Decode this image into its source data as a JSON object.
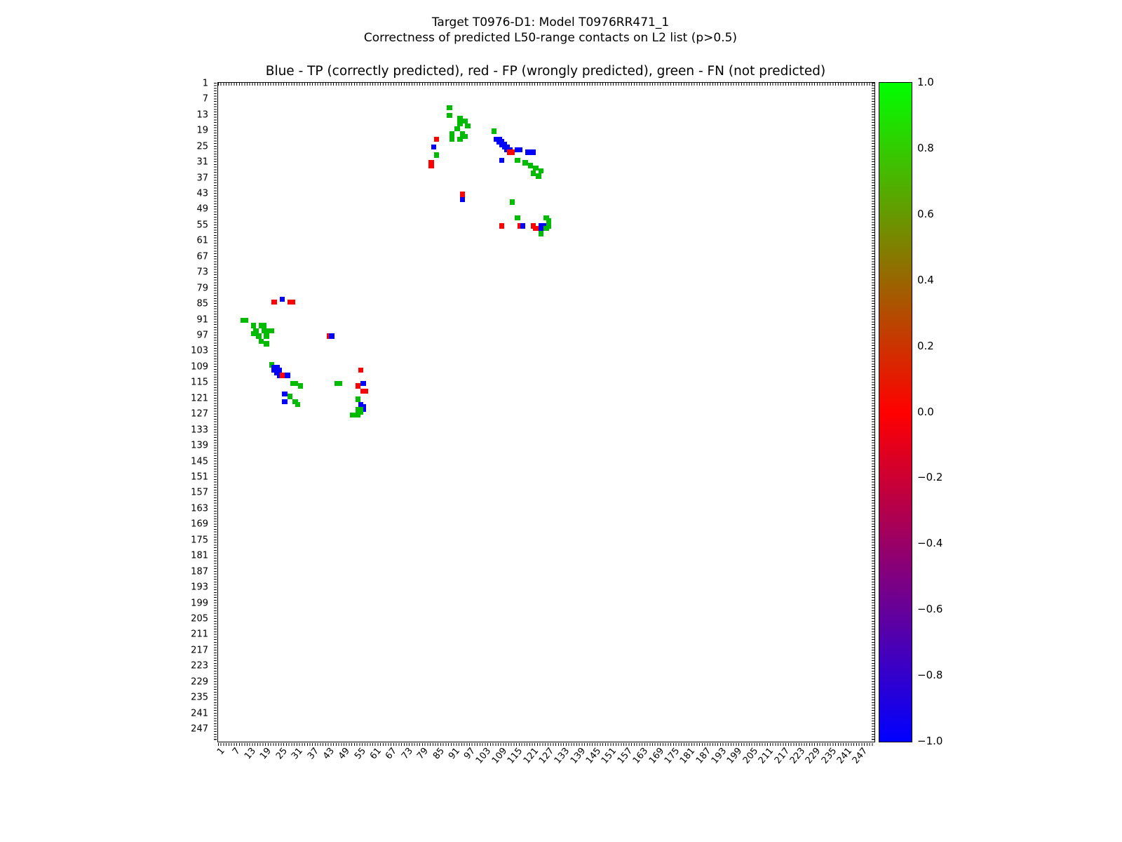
{
  "figure": {
    "suptitle1": "Target T0976-D1: Model T0976RR471_1",
    "suptitle2": "Correctness of predicted L50-range contacts on L2 list (p>0.5)"
  },
  "chart_data": {
    "type": "scatter",
    "title": "Blue - TP (correctly predicted), red - FP (wrongly predicted), green - FN (not predicted)",
    "xlabel": "",
    "ylabel": "",
    "xlim": [
      0.5,
      251.5
    ],
    "ylim": [
      0.5,
      251.5
    ],
    "y_inverted": true,
    "grid": false,
    "marker_units": 2,
    "axis_tick_labels": [
      1,
      7,
      13,
      19,
      25,
      31,
      37,
      43,
      49,
      55,
      61,
      67,
      73,
      79,
      85,
      91,
      97,
      103,
      109,
      115,
      121,
      127,
      133,
      139,
      145,
      151,
      157,
      163,
      169,
      175,
      181,
      187,
      193,
      199,
      205,
      211,
      217,
      223,
      229,
      235,
      241,
      247
    ],
    "classes": {
      "TP": {
        "label": "TP (correctly predicted)",
        "color": "#0000ff"
      },
      "FP": {
        "label": "FP (wrongly predicted)",
        "color": "#ff0000"
      },
      "FN": {
        "label": "FN (not predicted)",
        "color": "#00bb00"
      }
    },
    "points": [
      [
        89,
        10,
        "FN"
      ],
      [
        89,
        13,
        "FN"
      ],
      [
        93,
        14,
        "FN"
      ],
      [
        95,
        15,
        "FN"
      ],
      [
        93,
        16,
        "FN"
      ],
      [
        96,
        17,
        "FN"
      ],
      [
        92,
        18,
        "FN"
      ],
      [
        90,
        20,
        "FN"
      ],
      [
        94,
        20,
        "FN"
      ],
      [
        95,
        21,
        "FN"
      ],
      [
        90,
        22,
        "FN"
      ],
      [
        93,
        22,
        "FN"
      ],
      [
        84,
        22,
        "FP"
      ],
      [
        83,
        25,
        "TP"
      ],
      [
        84,
        28,
        "FN"
      ],
      [
        82,
        31,
        "FP"
      ],
      [
        82,
        32,
        "FP"
      ],
      [
        106,
        19,
        "FN"
      ],
      [
        107,
        22,
        "TP"
      ],
      [
        108,
        22,
        "TP"
      ],
      [
        108,
        23,
        "TP"
      ],
      [
        109,
        23,
        "TP"
      ],
      [
        109,
        24,
        "TP"
      ],
      [
        110,
        24,
        "TP"
      ],
      [
        110,
        25,
        "TP"
      ],
      [
        111,
        25,
        "TP"
      ],
      [
        111,
        26,
        "TP"
      ],
      [
        112,
        26,
        "TP"
      ],
      [
        112,
        27,
        "FP"
      ],
      [
        113,
        27,
        "FP"
      ],
      [
        115,
        26,
        "TP"
      ],
      [
        116,
        26,
        "TP"
      ],
      [
        119,
        27,
        "TP"
      ],
      [
        121,
        27,
        "TP"
      ],
      [
        109,
        30,
        "TP"
      ],
      [
        115,
        30,
        "FN"
      ],
      [
        118,
        31,
        "FN"
      ],
      [
        120,
        32,
        "FN"
      ],
      [
        122,
        33,
        "FN"
      ],
      [
        124,
        34,
        "FN"
      ],
      [
        121,
        35,
        "FN"
      ],
      [
        123,
        36,
        "FN"
      ],
      [
        94,
        43,
        "FP"
      ],
      [
        94,
        45,
        "TP"
      ],
      [
        113,
        46,
        "FN"
      ],
      [
        109,
        55,
        "FP"
      ],
      [
        115,
        52,
        "FN"
      ],
      [
        116,
        55,
        "FP"
      ],
      [
        117,
        55,
        "TP"
      ],
      [
        121,
        55,
        "FP"
      ],
      [
        122,
        56,
        "FP"
      ],
      [
        124,
        55,
        "TP"
      ],
      [
        125,
        55,
        "TP"
      ],
      [
        124,
        56,
        "TP"
      ],
      [
        125,
        56,
        "TP"
      ],
      [
        126,
        52,
        "FN"
      ],
      [
        127,
        53,
        "FN"
      ],
      [
        127,
        55,
        "FN"
      ],
      [
        126,
        56,
        "FN"
      ],
      [
        124,
        58,
        "FN"
      ],
      [
        22,
        84,
        "FP"
      ],
      [
        25,
        83,
        "TP"
      ],
      [
        28,
        84,
        "FP"
      ],
      [
        29,
        84,
        "FP"
      ],
      [
        10,
        91,
        "FN"
      ],
      [
        11,
        91,
        "FN"
      ],
      [
        14,
        93,
        "FN"
      ],
      [
        17,
        93,
        "FN"
      ],
      [
        18,
        93,
        "FN"
      ],
      [
        15,
        95,
        "FN"
      ],
      [
        18,
        95,
        "FN"
      ],
      [
        20,
        95,
        "FN"
      ],
      [
        21,
        95,
        "FN"
      ],
      [
        14,
        96,
        "FN"
      ],
      [
        16,
        97,
        "FN"
      ],
      [
        19,
        97,
        "FN"
      ],
      [
        17,
        99,
        "FN"
      ],
      [
        19,
        100,
        "FN"
      ],
      [
        43,
        97,
        "FP"
      ],
      [
        44,
        97,
        "TP"
      ],
      [
        21,
        108,
        "FN"
      ],
      [
        22,
        109,
        "TP"
      ],
      [
        23,
        109,
        "TP"
      ],
      [
        22,
        110,
        "TP"
      ],
      [
        23,
        110,
        "TP"
      ],
      [
        24,
        110,
        "TP"
      ],
      [
        23,
        111,
        "TP"
      ],
      [
        24,
        111,
        "TP"
      ],
      [
        24,
        112,
        "TP"
      ],
      [
        25,
        112,
        "FP"
      ],
      [
        27,
        112,
        "TP"
      ],
      [
        29,
        115,
        "FN"
      ],
      [
        30,
        115,
        "FN"
      ],
      [
        32,
        116,
        "FN"
      ],
      [
        26,
        119,
        "TP"
      ],
      [
        28,
        120,
        "FN"
      ],
      [
        26,
        122,
        "TP"
      ],
      [
        30,
        122,
        "FN"
      ],
      [
        31,
        123,
        "FN"
      ],
      [
        55,
        110,
        "FP"
      ],
      [
        46,
        115,
        "FN"
      ],
      [
        47,
        115,
        "FN"
      ],
      [
        56,
        115,
        "TP"
      ],
      [
        54,
        116,
        "FP"
      ],
      [
        56,
        118,
        "FP"
      ],
      [
        57,
        118,
        "FP"
      ],
      [
        54,
        121,
        "FN"
      ],
      [
        55,
        123,
        "TP"
      ],
      [
        56,
        124,
        "TP"
      ],
      [
        56,
        125,
        "TP"
      ],
      [
        54,
        125,
        "FN"
      ],
      [
        55,
        125,
        "FN"
      ],
      [
        54,
        126,
        "FN"
      ],
      [
        55,
        126,
        "FN"
      ],
      [
        53,
        127,
        "FN"
      ],
      [
        52,
        127,
        "FN"
      ],
      [
        54,
        127,
        "FN"
      ]
    ],
    "colorbar": {
      "min": -1.0,
      "max": 1.0,
      "tick_labels": [
        "1.0",
        "0.8",
        "0.6",
        "0.4",
        "0.2",
        "0.0",
        "−0.2",
        "−0.4",
        "−0.6",
        "−0.8",
        "−1.0"
      ],
      "top_color": "#00ff00",
      "mid_color": "#ff0000",
      "bottom_color": "#0000ff",
      "position": "right"
    }
  }
}
